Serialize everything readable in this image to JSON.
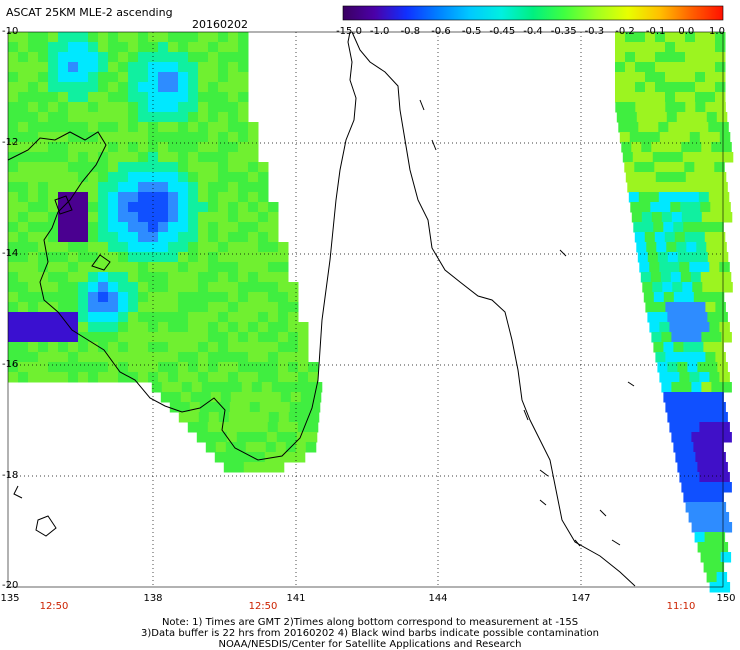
{
  "header": {
    "title": "ASCAT 25KM MLE-2 ascending",
    "date": "20160202"
  },
  "colorbar": {
    "labels": [
      "-15.0",
      "-1.0",
      "-0.8",
      "-0.6",
      "-0.5",
      "-0.45",
      "-0.4",
      "-0.35",
      "-0.3",
      "-0.2",
      "-0.1",
      "0.0",
      "1.0"
    ],
    "colors": [
      "#3a0060",
      "#4b00a8",
      "#1030ff",
      "#0080ff",
      "#00c8ff",
      "#00f0e0",
      "#00f080",
      "#40ff40",
      "#a0ff20",
      "#e8ff00",
      "#ffc000",
      "#ff6000",
      "#ff1000"
    ]
  },
  "axes": {
    "lat_labels": [
      "-10",
      "-12",
      "-14",
      "-16",
      "-18",
      "-20"
    ],
    "lon_labels": [
      "135",
      "138",
      "141",
      "144",
      "147",
      "150"
    ],
    "time_labels": [
      "12:50",
      "12:50",
      "11:10"
    ]
  },
  "notes": [
    "Note: 1) Times are GMT 2)Times along bottom correspond to measurement at -15S",
    "3)Data buffer is 22 hrs from 20160202 4) Black wind barbs indicate possible contamination",
    "NOAA/NESDIS/Center for Satellite Applications and Research"
  ],
  "map": {
    "lat_range": [
      -20,
      -10
    ],
    "lon_range": [
      135,
      150
    ],
    "grid": true,
    "swath_colors": {
      "green": "#40ee40",
      "lime": "#9cf420",
      "cyan": "#00e8ff",
      "blue": "#1050ff",
      "indigo": "#3a10d0",
      "violet": "#400090"
    }
  }
}
